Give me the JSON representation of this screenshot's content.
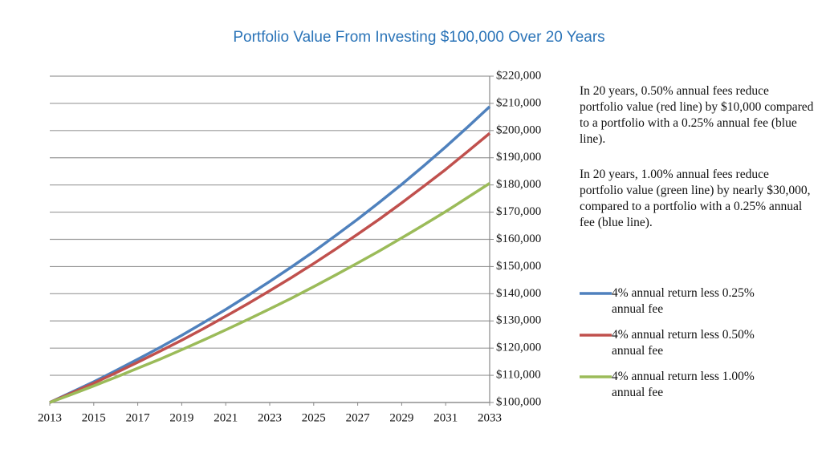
{
  "chart_data": {
    "type": "line",
    "title": "Portfolio Value From Investing $100,000 Over 20 Years",
    "x": [
      2013,
      2014,
      2015,
      2016,
      2017,
      2018,
      2019,
      2020,
      2021,
      2022,
      2023,
      2024,
      2025,
      2026,
      2027,
      2028,
      2029,
      2030,
      2031,
      2032,
      2033
    ],
    "series": [
      {
        "name": "4% annual return less 0.25% annual fee",
        "color": "#4f81bd",
        "values": [
          100000,
          103800,
          107600,
          111700,
          115900,
          120200,
          124700,
          129400,
          134200,
          139300,
          144500,
          149900,
          155500,
          161400,
          167400,
          173700,
          180200,
          187000,
          194000,
          201300,
          208800
        ]
      },
      {
        "name": "4% annual return less 0.50% annual fee",
        "color": "#c0504d",
        "values": [
          100000,
          103500,
          107100,
          110900,
          114800,
          118800,
          122900,
          127200,
          131700,
          136300,
          141100,
          146000,
          151100,
          156400,
          161900,
          167500,
          173400,
          179500,
          185700,
          192300,
          199000
        ]
      },
      {
        "name": "4% annual return less 1.00% annual fee",
        "color": "#9bbb59",
        "values": [
          100000,
          103000,
          106100,
          109300,
          112600,
          115900,
          119400,
          123000,
          126700,
          130500,
          134400,
          138400,
          142600,
          146900,
          151300,
          155800,
          160500,
          165300,
          170200,
          175400,
          180600
        ]
      }
    ],
    "xlim": [
      2013,
      2033
    ],
    "xticks": [
      2013,
      2015,
      2017,
      2019,
      2021,
      2023,
      2025,
      2027,
      2029,
      2031,
      2033
    ],
    "ylim": [
      100000,
      220000
    ],
    "yticks": [
      {
        "value": 100000,
        "label": "$100,000"
      },
      {
        "value": 110000,
        "label": "$110,000"
      },
      {
        "value": 120000,
        "label": "$120,000"
      },
      {
        "value": 130000,
        "label": "$130,000"
      },
      {
        "value": 140000,
        "label": "$140,000"
      },
      {
        "value": 150000,
        "label": "$150,000"
      },
      {
        "value": 160000,
        "label": "$160,000"
      },
      {
        "value": 170000,
        "label": "$170,000"
      },
      {
        "value": 180000,
        "label": "$180,000"
      },
      {
        "value": 190000,
        "label": "$190,000"
      },
      {
        "value": 200000,
        "label": "$200,000"
      },
      {
        "value": 210000,
        "label": "$210,000"
      },
      {
        "value": 220000,
        "label": "$220,000"
      }
    ],
    "grid": true,
    "annotations": [
      "In 20 years, 0.50% annual fees reduce portfolio value (red line) by $10,000 compared to a portfolio with a 0.25% annual fee (blue line).",
      "In 20 years, 1.00% annual fees reduce portfolio value (green line) by nearly $30,000, compared to a portfolio with a 0.25% annual fee (blue line)."
    ]
  }
}
